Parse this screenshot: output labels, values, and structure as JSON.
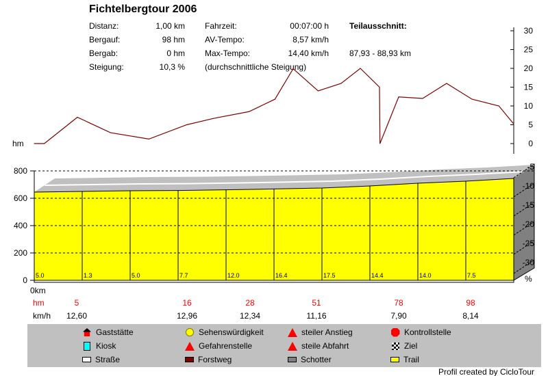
{
  "title": "Fichtelbergtour 2006",
  "stats": {
    "rows": [
      {
        "label": "Distanz:",
        "value": "1,00 km",
        "label2": "Fahrzeit:",
        "value2": "00:07:00 h",
        "extra": "Teilausschnitt:"
      },
      {
        "label": "Bergauf:",
        "value": "98 hm",
        "label2": "AV-Tempo:",
        "value2": "8,57 km/h",
        "extra": ""
      },
      {
        "label": "Bergab:",
        "value": "0 hm",
        "label2": "Max-Tempo:",
        "value2": "14,40 km/h",
        "extra": "87,93 - 88,93 km"
      },
      {
        "label": "Steigung:",
        "value": "10,3 %",
        "label2": "(durchschnittliche Steigung)",
        "value2": "",
        "extra": ""
      }
    ]
  },
  "chart_data": [
    {
      "type": "line",
      "series": [
        {
          "color": "#800000",
          "x": [
            0,
            0.021,
            0.09,
            0.159,
            0.239,
            0.318,
            0.374,
            0.448,
            0.502,
            0.54,
            0.592,
            0.64,
            0.68,
            0.72,
            0.721,
            0.76,
            0.81,
            0.86,
            0.913,
            0.969,
            1.0
          ],
          "y": [
            0,
            0,
            7,
            2.9,
            1.2,
            5,
            6.7,
            8.5,
            11.8,
            19.9,
            14,
            16,
            20,
            15,
            0,
            12.4,
            12,
            16,
            11.8,
            10,
            5.2
          ]
        }
      ],
      "xlim": [
        0,
        1
      ],
      "ylim": [
        0,
        30
      ],
      "yticks": [
        "30",
        "25",
        "20",
        "15",
        "10",
        "5",
        "0"
      ],
      "yaxis_position": "right"
    },
    {
      "type": "area",
      "ylabel": "hm",
      "xlabel": "0km",
      "ylim": [
        0,
        800
      ],
      "yticks": [
        "800",
        "600",
        "400",
        "200",
        "0"
      ],
      "grid": true,
      "fill_color": "#ffff00",
      "segments_gradient": [
        "5.0",
        "1.3",
        "5.0",
        "7.7",
        "12.0",
        "16.4",
        "17.5",
        "14.4",
        "14.0",
        "7.5"
      ],
      "elevation": [
        645,
        650,
        655,
        657,
        662,
        668,
        675,
        690,
        710,
        725,
        745
      ],
      "right_axis": {
        "label": "%",
        "ticks": [
          "-5",
          "-10",
          "-15",
          "-20",
          "-25",
          "-30"
        ]
      }
    }
  ],
  "summary": {
    "hm_label": "hm",
    "kmh_label": "km/h",
    "cols": [
      {
        "hm": "5",
        "kmh": "12,60"
      },
      {
        "hm": "16",
        "kmh": "12,96"
      },
      {
        "hm": "28",
        "kmh": "12,34"
      },
      {
        "hm": "51",
        "kmh": "11,16"
      },
      {
        "hm": "78",
        "kmh": "7,90"
      },
      {
        "hm": "98",
        "kmh": "8,14"
      }
    ]
  },
  "legend": [
    {
      "label": "Gaststätte",
      "icon": "house-icon"
    },
    {
      "label": "Sehenswürdigkeit",
      "icon": "smiley-icon"
    },
    {
      "label": "steiler Anstieg",
      "icon": "steep-climb-icon"
    },
    {
      "label": "Kontrollstelle",
      "icon": "stop-sign-icon"
    },
    {
      "label": "Kiosk",
      "icon": "kiosk-icon"
    },
    {
      "label": "Gefahrenstelle",
      "icon": "warning-icon"
    },
    {
      "label": "steile Abfahrt",
      "icon": "steep-descent-icon"
    },
    {
      "label": "Ziel",
      "icon": "finish-flag-icon"
    },
    {
      "label": "Straße",
      "icon": "swatch",
      "color": "#ffffff"
    },
    {
      "label": "Forstweg",
      "icon": "swatch",
      "color": "#800000"
    },
    {
      "label": "Schotter",
      "icon": "swatch",
      "color": "#808080"
    },
    {
      "label": "Trail",
      "icon": "swatch",
      "color": "#ffff00"
    }
  ],
  "footer": "Profil created by CicloTour"
}
